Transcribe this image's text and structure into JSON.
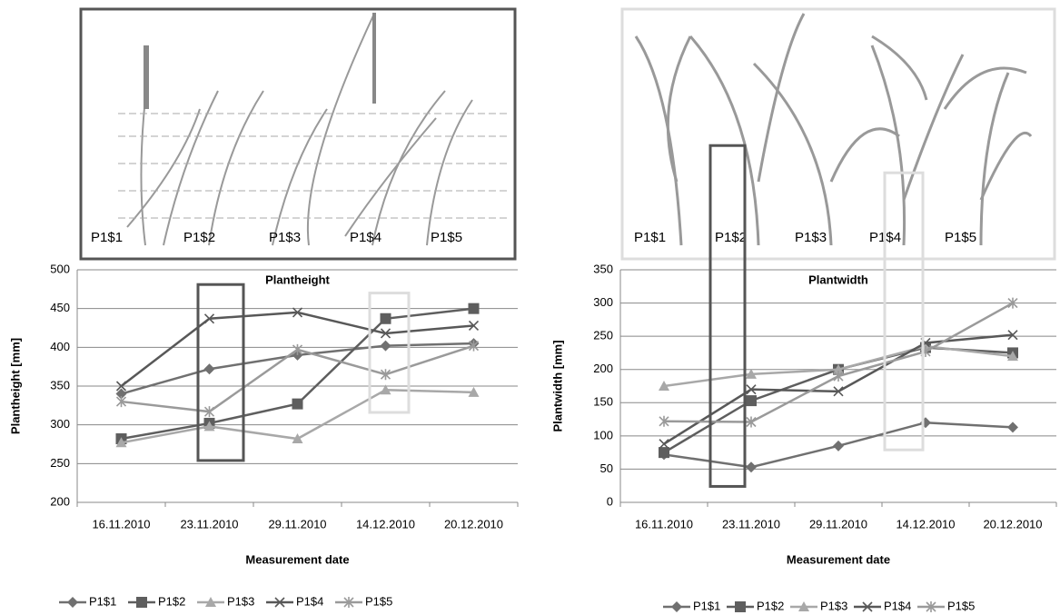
{
  "images": [
    {
      "labels": [
        "P1$1",
        "P1$2",
        "P1$3",
        "P1$4",
        "P1$5"
      ]
    },
    {
      "labels": [
        "P1$1",
        "P1$2",
        "P1$3",
        "P1$4",
        "P1$5"
      ]
    }
  ],
  "chart_data": [
    {
      "type": "line",
      "title": "Plantheight",
      "ylabel": "Plantheight [mm]",
      "xlabel": "Measurement date",
      "categories": [
        "16.11.2010",
        "23.11.2010",
        "29.11.2010",
        "14.12.2010",
        "20.12.2010"
      ],
      "ylim": [
        200,
        500
      ],
      "yticks": [
        200,
        250,
        300,
        350,
        400,
        450,
        500
      ],
      "grid": true,
      "legend": "bottom",
      "series": [
        {
          "name": "P1$1",
          "color": "#707070",
          "marker": "diamond",
          "values": [
            340,
            372,
            390,
            402,
            405
          ]
        },
        {
          "name": "P1$2",
          "color": "#5e5e5e",
          "marker": "square",
          "values": [
            282,
            302,
            327,
            437,
            450
          ]
        },
        {
          "name": "P1$3",
          "color": "#a8a8a8",
          "marker": "triangle",
          "values": [
            277,
            298,
            282,
            345,
            342
          ]
        },
        {
          "name": "P1$4",
          "color": "#585858",
          "marker": "x",
          "values": [
            350,
            437,
            445,
            418,
            428
          ]
        },
        {
          "name": "P1$5",
          "color": "#9a9a9a",
          "marker": "star",
          "values": [
            330,
            317,
            397,
            365,
            402
          ]
        }
      ]
    },
    {
      "type": "line",
      "title": "Plantwidth",
      "ylabel": "Plantwidth [mm]",
      "xlabel": "Measurement date",
      "categories": [
        "16.11.2010",
        "23.11.2010",
        "29.11.2010",
        "14.12.2010",
        "20.12.2010"
      ],
      "ylim": [
        0,
        350
      ],
      "yticks": [
        0,
        50,
        100,
        150,
        200,
        250,
        300,
        350
      ],
      "grid": true,
      "legend": "bottom",
      "series": [
        {
          "name": "P1$1",
          "color": "#707070",
          "marker": "diamond",
          "values": [
            72,
            53,
            85,
            120,
            113
          ]
        },
        {
          "name": "P1$2",
          "color": "#5e5e5e",
          "marker": "square",
          "values": [
            75,
            153,
            200,
            233,
            225
          ]
        },
        {
          "name": "P1$3",
          "color": "#a8a8a8",
          "marker": "triangle",
          "values": [
            175,
            193,
            200,
            235,
            220
          ]
        },
        {
          "name": "P1$4",
          "color": "#585858",
          "marker": "x",
          "values": [
            88,
            170,
            167,
            240,
            252
          ]
        },
        {
          "name": "P1$5",
          "color": "#9a9a9a",
          "marker": "star",
          "values": [
            122,
            121,
            190,
            227,
            300
          ]
        }
      ]
    }
  ]
}
